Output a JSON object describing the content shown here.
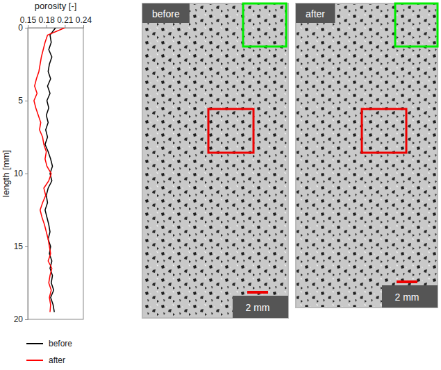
{
  "chart_data": {
    "type": "line",
    "orientation": "horizontal",
    "x_label": "length [mm]",
    "y_label": "porosity [-]",
    "x": [
      0,
      0.5,
      1,
      1.5,
      2,
      2.5,
      3,
      3.5,
      4,
      4.5,
      5,
      5.5,
      6,
      6.5,
      7,
      7.5,
      8,
      8.5,
      9,
      9.5,
      10,
      10.5,
      11,
      11.5,
      12,
      12.5,
      13,
      13.5,
      14,
      14.5,
      15,
      15.5,
      16,
      16.5,
      17,
      17.5,
      18,
      18.5,
      19,
      19.5
    ],
    "xlim": [
      0,
      20
    ],
    "xticks": [
      0,
      5,
      10,
      15,
      20
    ],
    "ylim": [
      0.15,
      0.24
    ],
    "yticks": [
      0.15,
      0.18,
      0.21,
      0.24
    ],
    "grid": false,
    "legend": "bottom",
    "series": [
      {
        "name": "before",
        "color": "#000000",
        "values": [
          0.195,
          0.186,
          0.188,
          0.184,
          0.189,
          0.185,
          0.183,
          0.187,
          0.182,
          0.186,
          0.181,
          0.184,
          0.18,
          0.183,
          0.179,
          0.182,
          0.178,
          0.183,
          0.187,
          0.19,
          0.186,
          0.189,
          0.183,
          0.18,
          0.182,
          0.178,
          0.181,
          0.184,
          0.186,
          0.183,
          0.187,
          0.185,
          0.189,
          0.186,
          0.19,
          0.188,
          0.192,
          0.187,
          0.191,
          0.193
        ]
      },
      {
        "name": "after",
        "color": "#ff0000",
        "values": [
          0.21,
          0.182,
          0.178,
          0.175,
          0.172,
          0.17,
          0.168,
          0.164,
          0.161,
          0.165,
          0.16,
          0.163,
          0.167,
          0.171,
          0.169,
          0.174,
          0.176,
          0.18,
          0.178,
          0.181,
          0.188,
          0.184,
          0.176,
          0.179,
          0.174,
          0.17,
          0.173,
          0.177,
          0.18,
          0.183,
          0.185,
          0.187,
          0.183,
          0.189,
          0.186,
          0.184,
          0.188,
          0.185,
          0.187,
          0.186
        ]
      }
    ]
  },
  "panels": [
    {
      "label": "before",
      "scale_bar": "2 mm"
    },
    {
      "label": "after",
      "scale_bar": "2 mm"
    }
  ]
}
